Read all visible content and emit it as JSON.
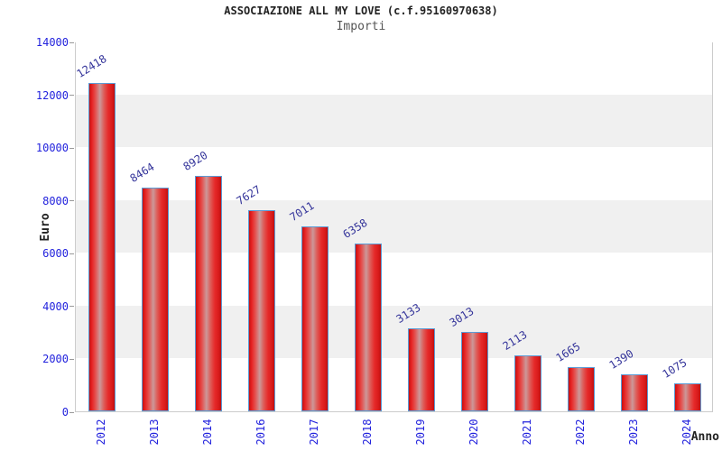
{
  "chart_data": {
    "type": "bar",
    "title": "ASSOCIAZIONE ALL MY LOVE (c.f.95160970638)",
    "subtitle": "Importi",
    "xlabel": "Anno",
    "ylabel": "Euro",
    "categories": [
      "2012",
      "2013",
      "2014",
      "2016",
      "2017",
      "2018",
      "2019",
      "2020",
      "2021",
      "2022",
      "2023",
      "2024"
    ],
    "values": [
      12418,
      8464,
      8920,
      7627,
      7011,
      6358,
      3133,
      3013,
      2113,
      1665,
      1390,
      1075
    ],
    "ylim": [
      0,
      14000
    ],
    "ytick_step": 2000,
    "yticks": [
      0,
      2000,
      4000,
      6000,
      8000,
      10000,
      12000,
      14000
    ],
    "grid": "alternating-horizontal-bands",
    "legend": null,
    "style": {
      "bar_fill_edge": "#c41212",
      "bar_fill_main": "#e62222",
      "bar_fill_highlight": "#cc9899",
      "bar_border": "#5b9bd5",
      "value_label_color": "#34349a",
      "tick_label_color": "#2222dd",
      "band_gray": "#f0f0f0",
      "band_white": "#ffffff",
      "plot_border": "#cccccc",
      "title_color": "#222222",
      "subtitle_color": "#555555",
      "axis_title_color": "#222222"
    }
  }
}
